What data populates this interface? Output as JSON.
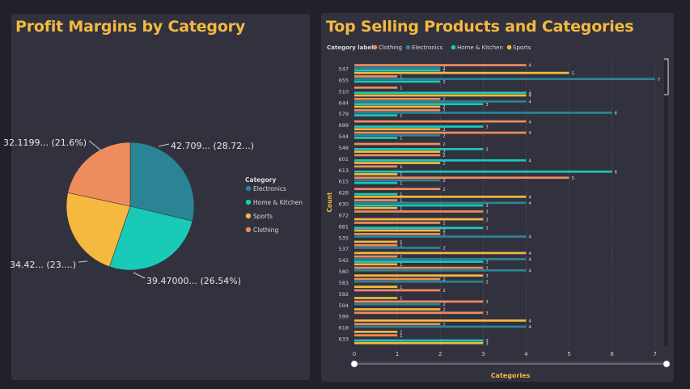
{
  "pie_panel": {
    "title": "Profit Margins by Category",
    "legend_title": "Category",
    "legend": [
      "Electronics",
      "Home & Kitchen",
      "Sports",
      "Clothing"
    ]
  },
  "bar_panel": {
    "title": "Top Selling Products and Categories",
    "legend_title": "Category label",
    "legend": [
      "Clothing",
      "Electronics",
      "Home & Kitchen",
      "Sports"
    ],
    "ylabel": "Count",
    "xlabel": "Categories"
  },
  "colors": {
    "Electronics": "#2a8495",
    "Home & Kitchen": "#19cab9",
    "Sports": "#f6b93f",
    "Clothing": "#ef8c5d",
    "title": "#f4b93e",
    "panel": "#32323f",
    "background": "#212129"
  },
  "chart_data": [
    {
      "type": "pie",
      "title": "Profit Margins by Category",
      "legend_title": "Category",
      "legend_position": "right",
      "slices": [
        {
          "name": "Electronics",
          "value": 42.709,
          "percent": 28.72,
          "label": "42.709... (28.72...)"
        },
        {
          "name": "Home & Kitchen",
          "value": 39.47,
          "percent": 26.54,
          "label": "39.47000... (26.54%)"
        },
        {
          "name": "Sports",
          "value": 34.42,
          "percent": 23.1,
          "label": "34.42... (23....)"
        },
        {
          "name": "Clothing",
          "value": 32.1199,
          "percent": 21.6,
          "label": "32.1199... (21.6%)"
        }
      ]
    },
    {
      "type": "bar",
      "orientation": "horizontal",
      "title": "Top Selling Products and Categories",
      "legend_title": "Category label",
      "legend_position": "top-left",
      "xlabel": "Categories",
      "ylabel": "Count",
      "xlim": [
        0,
        7
      ],
      "xticks": [
        "0",
        "1",
        "2",
        "3",
        "4",
        "5",
        "6",
        "7"
      ],
      "grid": true,
      "series_names": [
        "Clothing",
        "Electronics",
        "Home & Kitchen",
        "Sports"
      ],
      "categories": [
        "547",
        "655",
        "510",
        "644",
        "579",
        "699",
        "544",
        "548",
        "601",
        "613",
        "615",
        "626",
        "630",
        "672",
        "681",
        "535",
        "537",
        "542",
        "580",
        "583",
        "592",
        "594",
        "599",
        "618",
        "633"
      ],
      "values": [
        [
          4,
          2,
          2,
          5
        ],
        [
          1,
          7,
          2,
          0
        ],
        [
          1,
          0,
          4,
          4
        ],
        [
          2,
          4,
          3,
          2
        ],
        [
          2,
          6,
          1,
          0
        ],
        [
          4,
          0,
          3,
          2
        ],
        [
          4,
          2,
          1,
          0
        ],
        [
          2,
          0,
          3,
          2
        ],
        [
          2,
          0,
          4,
          2
        ],
        [
          1,
          0,
          6,
          1
        ],
        [
          5,
          2,
          1,
          0
        ],
        [
          2,
          0,
          1,
          4
        ],
        [
          1,
          4,
          3,
          1
        ],
        [
          3,
          0,
          0,
          3
        ],
        [
          2,
          0,
          3,
          2
        ],
        [
          2,
          4,
          0,
          1
        ],
        [
          1,
          2,
          0,
          4
        ],
        [
          1,
          4,
          3,
          1
        ],
        [
          3,
          4,
          0,
          3
        ],
        [
          2,
          3,
          0,
          1
        ],
        [
          2,
          0,
          0,
          1
        ],
        [
          3,
          2,
          0,
          2
        ],
        [
          3,
          0,
          0,
          4
        ],
        [
          2,
          4,
          0,
          1
        ],
        [
          1,
          0,
          3,
          3
        ]
      ]
    }
  ]
}
